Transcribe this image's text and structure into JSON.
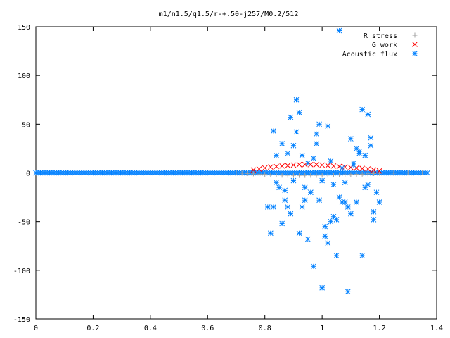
{
  "chart_data": {
    "type": "scatter",
    "title": "m1/n1.5/q1.5/r-+.50-j257/M0.2/512",
    "xlabel": "",
    "ylabel": "",
    "xlim": [
      0,
      1.4
    ],
    "ylim": [
      -150,
      150
    ],
    "x_ticks": [
      "0",
      "0.2",
      "0.4",
      "0.6",
      "0.8",
      "1",
      "1.2",
      "1.4"
    ],
    "y_ticks": [
      "150",
      "100",
      "50",
      "0",
      "-50",
      "-100",
      "-150"
    ],
    "legend_position": "top-right",
    "series": [
      {
        "name": "R stress",
        "marker": "plus",
        "color": "#a0a0a0",
        "x": [
          0.7,
          0.72,
          0.74,
          0.76,
          0.78,
          0.8,
          0.82,
          0.84,
          0.86,
          0.88,
          0.9,
          0.92,
          0.94,
          0.96,
          0.98,
          1.0,
          1.02,
          1.04,
          1.06,
          1.08,
          1.1,
          1.12,
          1.14,
          1.16,
          1.18,
          1.2,
          1.25,
          1.3,
          1.35
        ],
        "y": [
          0,
          -0.3,
          -0.6,
          -1,
          -1.3,
          -1.6,
          -2,
          -2.2,
          -2.4,
          -2.5,
          -2.6,
          -2.6,
          -2.6,
          -2.5,
          -2.5,
          -2.4,
          -2.3,
          -2.2,
          -2.1,
          -1.9,
          -1.7,
          -1.5,
          -1.3,
          -1.0,
          -0.7,
          -0.4,
          -0.2,
          -0.1,
          0
        ]
      },
      {
        "name": "G work",
        "marker": "cross",
        "color": "#ff0000",
        "x": [
          0.76,
          0.78,
          0.8,
          0.82,
          0.84,
          0.86,
          0.88,
          0.9,
          0.92,
          0.94,
          0.96,
          0.98,
          1.0,
          1.02,
          1.04,
          1.06,
          1.08,
          1.1,
          1.12,
          1.14,
          1.16,
          1.18,
          1.2
        ],
        "y": [
          3,
          4,
          5,
          6,
          6.5,
          7,
          7.5,
          8,
          8.5,
          8.5,
          8.5,
          8.5,
          8,
          7.5,
          7,
          6.5,
          6,
          5.5,
          5,
          4.5,
          4,
          3,
          2
        ]
      },
      {
        "name": "Acoustic flux",
        "marker": "star",
        "color": "#0080ff",
        "x": [
          0.82,
          0.83,
          0.84,
          0.86,
          0.87,
          0.88,
          0.89,
          0.9,
          0.91,
          0.92,
          0.93,
          0.94,
          0.95,
          0.96,
          0.97,
          0.98,
          0.99,
          1.0,
          1.01,
          1.02,
          1.03,
          1.04,
          1.05,
          1.06,
          1.07,
          1.08,
          1.09,
          1.1,
          1.11,
          1.12,
          1.13,
          1.14,
          1.15,
          1.16,
          1.17,
          1.18,
          1.19,
          0.85,
          0.88,
          0.91,
          0.94,
          0.97,
          1.0,
          1.03,
          1.06,
          1.09,
          1.12,
          1.15,
          1.18,
          0.83,
          0.86,
          0.89,
          0.92,
          0.95,
          0.98,
          1.01,
          1.04,
          1.07,
          1.1,
          1.13,
          1.16,
          0.81,
          0.87,
          0.93,
          0.99,
          1.05,
          1.11,
          1.17,
          0.84,
          0.9,
          0.96,
          1.02,
          1.08,
          1.14,
          1.2
        ],
        "y": [
          -62,
          43,
          18,
          -52,
          -18,
          -35,
          57,
          -8,
          75,
          -62,
          -35,
          -15,
          10,
          -20,
          -96,
          30,
          -28,
          -118,
          -65,
          -72,
          12,
          -45,
          -85,
          146,
          5,
          -10,
          -122,
          35,
          8,
          -30,
          22,
          -85,
          18,
          -12,
          36,
          -40,
          -20,
          -15,
          20,
          42,
          -28,
          15,
          -8,
          -50,
          -25,
          -35,
          25,
          -15,
          -48,
          -35,
          30,
          -42,
          62,
          -68,
          40,
          -55,
          -12,
          -30,
          -42,
          20,
          60,
          -35,
          -28,
          18,
          50,
          -48,
          10,
          28,
          -10,
          28,
          -20,
          48,
          -30,
          65,
          -30
        ]
      }
    ]
  }
}
